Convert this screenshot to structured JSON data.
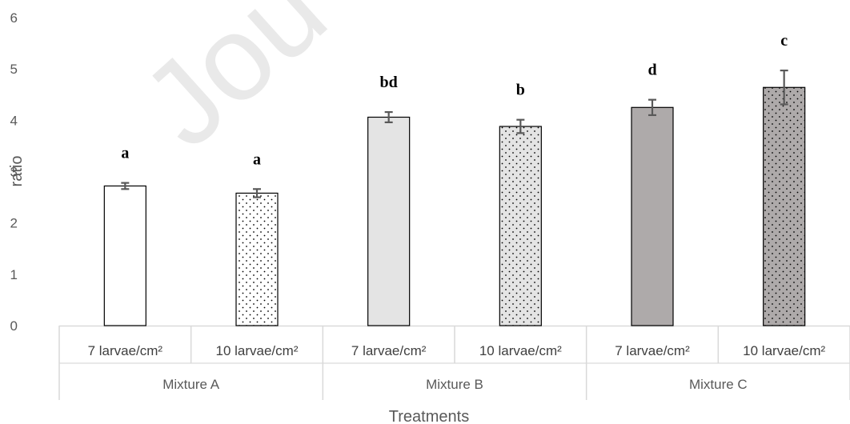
{
  "chart_data": {
    "type": "bar",
    "title": "",
    "xlabel": "Treatments",
    "ylabel": "ratio",
    "ylim": [
      0,
      6
    ],
    "yticks": [
      "0",
      "1",
      "2",
      "3",
      "4",
      "5",
      "6"
    ],
    "grid": false,
    "legend": "none",
    "watermark": "Jou",
    "categories": [
      "7 larvae/cm²",
      "10 larvae/cm²",
      "7 larvae/cm²",
      "10 larvae/cm²",
      "7 larvae/cm²",
      "10 larvae/cm²"
    ],
    "groups": [
      {
        "label": "Mixture A",
        "members": [
          0,
          1
        ]
      },
      {
        "label": "Mixture B",
        "members": [
          2,
          3
        ]
      },
      {
        "label": "Mixture C",
        "members": [
          4,
          5
        ]
      }
    ],
    "values": [
      2.72,
      2.58,
      4.06,
      3.88,
      4.25,
      4.64
    ],
    "errors": [
      0.06,
      0.08,
      0.1,
      0.13,
      0.15,
      0.33
    ],
    "significance_labels": [
      "a",
      "a",
      "bd",
      "b",
      "d",
      "c"
    ],
    "bar_fills": [
      "#ffffff",
      "#ffffff",
      "#e4e4e4",
      "#e4e4e4",
      "#aeaaaa",
      "#aeaaaa"
    ],
    "bar_dotted": [
      false,
      true,
      false,
      true,
      false,
      true
    ],
    "bar_stroke": "#000000",
    "axis_color": "#d9d9d9",
    "errorbar_color": "#595959"
  }
}
